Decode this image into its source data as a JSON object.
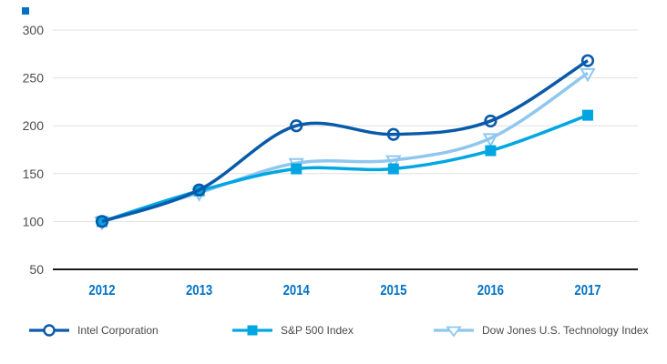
{
  "chart_data": {
    "type": "line",
    "title": "",
    "xlabel": "",
    "ylabel": "",
    "categories": [
      "2012",
      "2013",
      "2014",
      "2015",
      "2016",
      "2017"
    ],
    "ylim": [
      50,
      300
    ],
    "yticks": [
      50,
      100,
      150,
      200,
      250,
      300
    ],
    "grid": "horizontal",
    "legend_position": "bottom",
    "series": [
      {
        "name": "Intel Corporation",
        "marker": "circle-open",
        "color": "#0a5aaa",
        "values": [
          100,
          133,
          200,
          191,
          205,
          268
        ]
      },
      {
        "name": "S&P 500 Index",
        "marker": "square-filled",
        "color": "#00a6e2",
        "values": [
          100,
          132,
          155,
          155,
          174,
          211
        ]
      },
      {
        "name": "Dow Jones U.S. Technology Index",
        "marker": "triangle-down-open",
        "color": "#8fc7ef",
        "values": [
          100,
          130,
          161,
          164,
          187,
          255
        ]
      }
    ]
  },
  "colors": {
    "gridline": "#e0e0e0",
    "axis_line": "#1a1a1a",
    "y_tick_label": "#4d4d4d",
    "x_tick_label": "#0071c5",
    "legend_text": "#4a4a4a",
    "corner_mark": "#0071c5",
    "marker_fill_bg": "#ffffff"
  }
}
